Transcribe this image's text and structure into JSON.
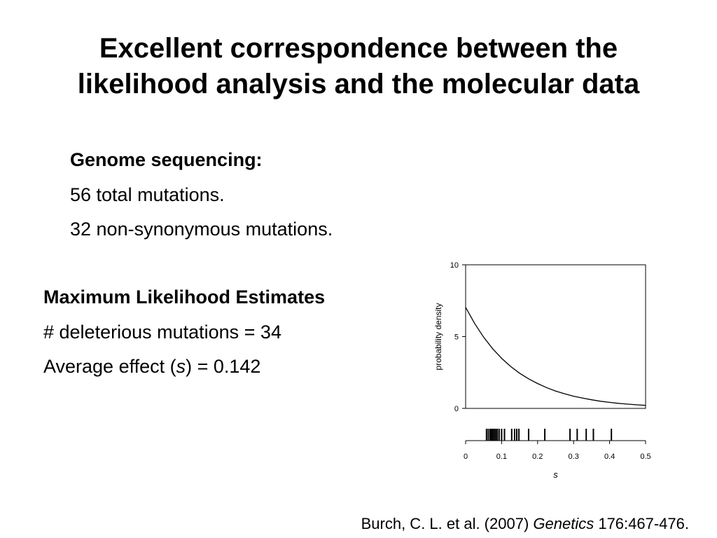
{
  "slide": {
    "title_lines": [
      "Excellent correspondence between the",
      "likelihood analysis and the molecular data"
    ]
  },
  "genome": {
    "heading": "Genome sequencing:",
    "lines": [
      "56 total mutations.",
      "32 non-synonymous mutations."
    ]
  },
  "mle": {
    "heading": "Maximum Likelihood Estimates",
    "line1": "# deleterious mutations = 34",
    "line2_prefix": "Average effect (",
    "line2_symbol": "s",
    "line2_suffix": ") = 0.142"
  },
  "citation": {
    "authors": "Burch, C. L. et al. (2007) ",
    "journal": "Genetics",
    "ref": " 176:467-476."
  },
  "chart_data": {
    "type": "line",
    "xlabel": "s",
    "ylabel": "probability density",
    "xlim": [
      0,
      0.5
    ],
    "ylim": [
      0,
      10
    ],
    "xticks": [
      "0",
      "0.1",
      "0.2",
      "0.3",
      "0.4",
      "0.5"
    ],
    "yticks": [
      "0",
      "5",
      "10"
    ],
    "grid": false,
    "series": [
      {
        "x": [
          0,
          0.025,
          0.05,
          0.075,
          0.1,
          0.125,
          0.15,
          0.175,
          0.2,
          0.225,
          0.25,
          0.275,
          0.3,
          0.325,
          0.35,
          0.375,
          0.4,
          0.425,
          0.45,
          0.475,
          0.5
        ],
        "values": [
          7.04,
          5.91,
          4.96,
          4.16,
          3.49,
          2.92,
          2.45,
          2.06,
          1.73,
          1.45,
          1.21,
          1.02,
          0.85,
          0.72,
          0.6,
          0.5,
          0.42,
          0.35,
          0.3,
          0.25,
          0.21
        ]
      }
    ],
    "observed_s": [
      0.058,
      0.063,
      0.068,
      0.072,
      0.076,
      0.08,
      0.084,
      0.088,
      0.093,
      0.1,
      0.108,
      0.128,
      0.136,
      0.142,
      0.148,
      0.175,
      0.22,
      0.29,
      0.31,
      0.335,
      0.355,
      0.405
    ],
    "colors": {
      "line": "#000000",
      "axis": "#000000"
    }
  }
}
